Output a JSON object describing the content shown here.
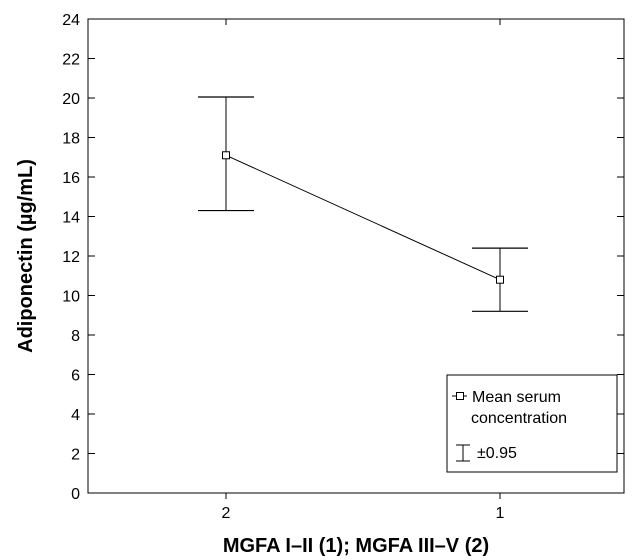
{
  "chart_data": {
    "type": "line",
    "title": "",
    "xlabel": "MGFA I–II (1); MGFA III–V (2)",
    "ylabel": "Adiponectin (µg/mL)",
    "categories": [
      "2",
      "1"
    ],
    "ylim": [
      0,
      24
    ],
    "yticks": [
      "0",
      "2",
      "4",
      "6",
      "8",
      "10",
      "12",
      "14",
      "16",
      "18",
      "20",
      "22",
      "24"
    ],
    "grid": false,
    "legend_position": "bottom-right",
    "series": [
      {
        "name": "Mean serum concentration",
        "values": [
          17.1,
          10.8
        ],
        "error_low": [
          14.3,
          9.2
        ],
        "error_high": [
          20.05,
          12.4
        ]
      }
    ],
    "legend": {
      "mean_label_line1": "Mean serum",
      "mean_label_line2": "concentration",
      "error_label": "±0.95"
    },
    "colors": {
      "line": "#000000",
      "background": "#ffffff"
    }
  }
}
